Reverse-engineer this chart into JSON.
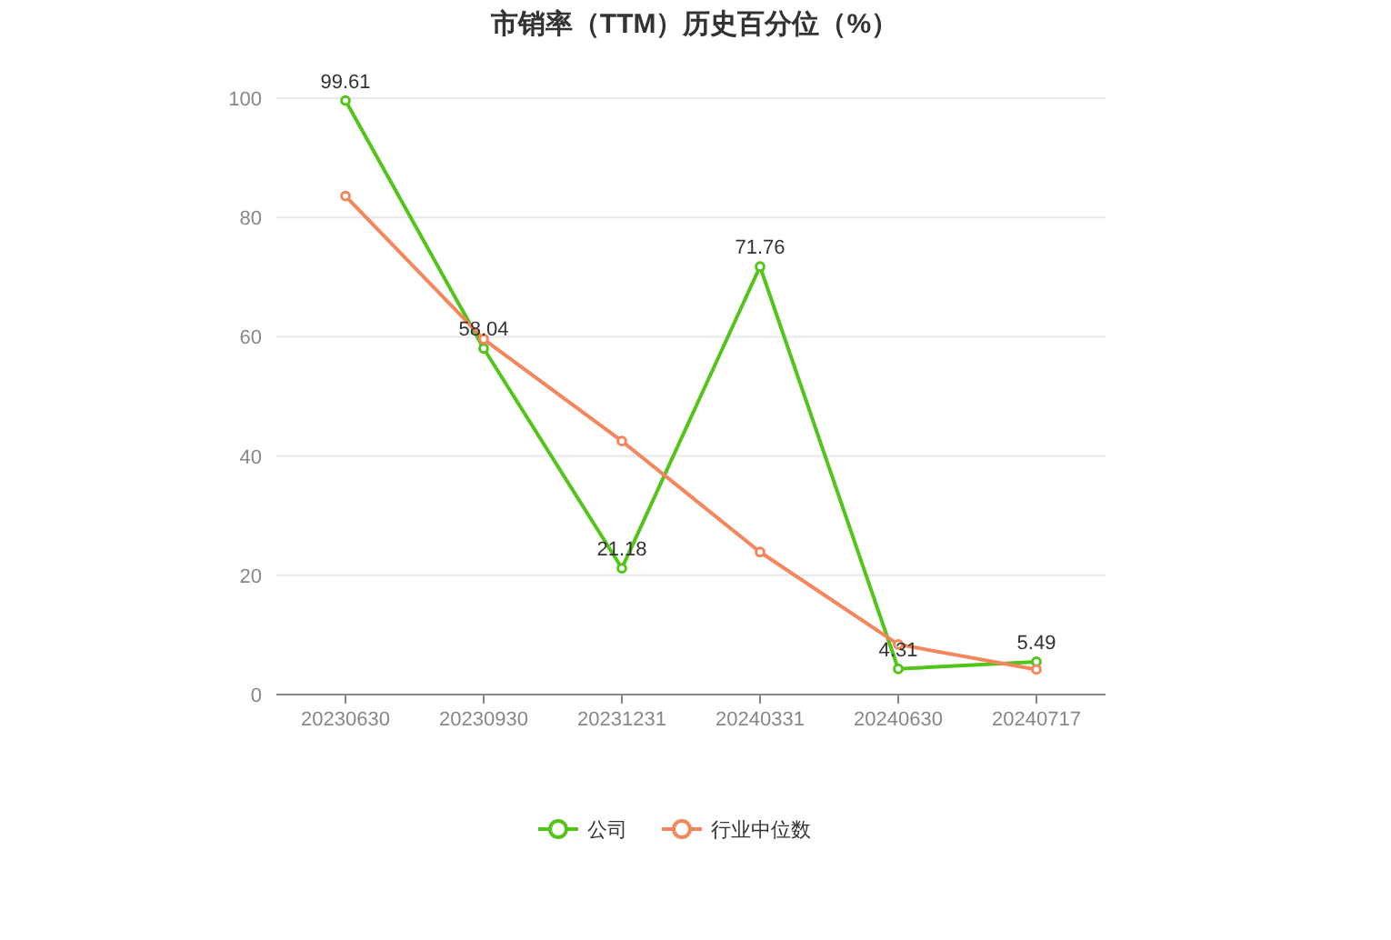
{
  "chart_data": {
    "type": "line",
    "title": "市销率（TTM）历史百分位（%）",
    "categories": [
      "20230630",
      "20230930",
      "20231231",
      "20240331",
      "20240630",
      "20240717"
    ],
    "series": [
      {
        "name": "公司",
        "color": "#52c41a",
        "values": [
          99.61,
          58.04,
          21.18,
          71.76,
          4.31,
          5.49
        ],
        "value_labels": [
          "99.61",
          "58.04",
          "21.18",
          "71.76",
          "4.31",
          "5.49"
        ]
      },
      {
        "name": "行业中位数",
        "color": "#f5855a",
        "values": [
          83.6,
          59.6,
          42.5,
          23.9,
          8.4,
          4.2
        ]
      }
    ],
    "ylim": [
      0,
      100
    ],
    "yticks": [
      0,
      20,
      40,
      60,
      80,
      100
    ],
    "grid": "y",
    "legend": "bottom",
    "marker": "circle",
    "line_style": "solid"
  }
}
